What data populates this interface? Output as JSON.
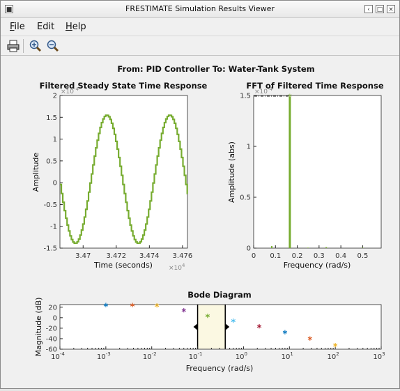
{
  "window": {
    "title": "FRESTIMATE Simulation Results Viewer"
  },
  "menu": {
    "file": "ile",
    "file_key": "F",
    "edit": "Edit",
    "help": "elp",
    "help_key": "H"
  },
  "figure": {
    "suptitle": "From: PID Controller  To: Water-Tank System",
    "time_panel": {
      "title": "Filtered Steady State Time Response",
      "xlabel": "Time (seconds)",
      "ylabel": "Amplitude",
      "y_exp": "×10",
      "y_exp_power": "-4",
      "x_exp": "×10",
      "x_exp_power": "4",
      "yticks": [
        "2",
        "1.5",
        "1",
        "0.5",
        "0",
        "-0.5",
        "-1",
        "-1.5"
      ],
      "xticks": [
        "3.47",
        "3.472",
        "3.474",
        "3.476"
      ]
    },
    "fft_panel": {
      "title": "FFT of Filtered Time Response",
      "xlabel": "Frequency (rad/s)",
      "ylabel": "Amplitude (abs)",
      "y_exp": "×10",
      "y_exp_power": "-4",
      "yticks": [
        "1.5",
        "1",
        "0.5",
        "0"
      ],
      "xticks": [
        "0",
        "0.1",
        "0.2",
        "0.3",
        "0.4",
        "0.5"
      ]
    },
    "bode_panel": {
      "title": "Bode Diagram",
      "xlabel": "Frequency  (rad/s)",
      "ylabel": "Magnitude (dB)",
      "yticks": [
        "20",
        "0",
        "-20",
        "-40",
        "-60"
      ],
      "xticks_base": [
        "10",
        "10",
        "10",
        "10",
        "10",
        "10",
        "10",
        "10"
      ],
      "xticks_power": [
        "-4",
        "-3",
        "-2",
        "-1",
        "0",
        "1",
        "2",
        "3"
      ]
    }
  },
  "chart_data": [
    {
      "type": "line",
      "title": "Filtered Steady State Time Response",
      "xlabel": "Time (seconds)",
      "ylabel": "Amplitude",
      "x_scale": "×10^4",
      "y_scale": "×10^-4",
      "xlim": [
        3.4686,
        3.4763
      ],
      "ylim": [
        -1.5,
        2
      ],
      "grid": false,
      "series": [
        {
          "color": "#77ac30",
          "description": "stepped sinusoid, ~2 periods",
          "x": [
            3.4686,
            3.4695,
            3.4705,
            3.4714,
            3.4724,
            3.4733,
            3.4743,
            3.4752,
            3.4762
          ],
          "y": [
            -0.95,
            -1.38,
            0.0,
            1.55,
            0.0,
            -1.38,
            0.0,
            1.55,
            -0.2
          ]
        }
      ]
    },
    {
      "type": "bar",
      "title": "FFT of Filtered Time Response",
      "xlabel": "Frequency (rad/s)",
      "ylabel": "Amplitude (abs)",
      "y_scale": "×10^-4",
      "xlim": [
        0,
        0.585
      ],
      "ylim": [
        0,
        1.5
      ],
      "series": [
        {
          "color": "#77ac30",
          "x": [
            0.083,
            0.166,
            0.249,
            0.333,
            0.5
          ],
          "values": [
            0.02,
            1.49,
            0.005,
            0.01,
            0.005
          ]
        }
      ]
    },
    {
      "type": "scatter",
      "title": "Bode Diagram",
      "xlabel": "Frequency  (rad/s)",
      "ylabel": "Magnitude (dB)",
      "x_log": true,
      "xlim": [
        0.0001,
        1000
      ],
      "ylim": [
        -60,
        25
      ],
      "highlight_band": [
        0.1,
        0.4
      ],
      "points": [
        {
          "x": 0.001,
          "y": 22,
          "color": "#0072bd"
        },
        {
          "x": 0.0038,
          "y": 22,
          "color": "#d95319"
        },
        {
          "x": 0.013,
          "y": 21,
          "color": "#edb120"
        },
        {
          "x": 0.05,
          "y": 12,
          "color": "#7e2f8e"
        },
        {
          "x": 0.165,
          "y": 1,
          "color": "#77ac30"
        },
        {
          "x": 0.6,
          "y": -8,
          "color": "#4dbeee"
        },
        {
          "x": 2.2,
          "y": -19,
          "color": "#a2142f"
        },
        {
          "x": 8,
          "y": -30,
          "color": "#0072bd"
        },
        {
          "x": 28,
          "y": -42,
          "color": "#d95319"
        },
        {
          "x": 100,
          "y": -55,
          "color": "#edb120"
        }
      ]
    }
  ]
}
